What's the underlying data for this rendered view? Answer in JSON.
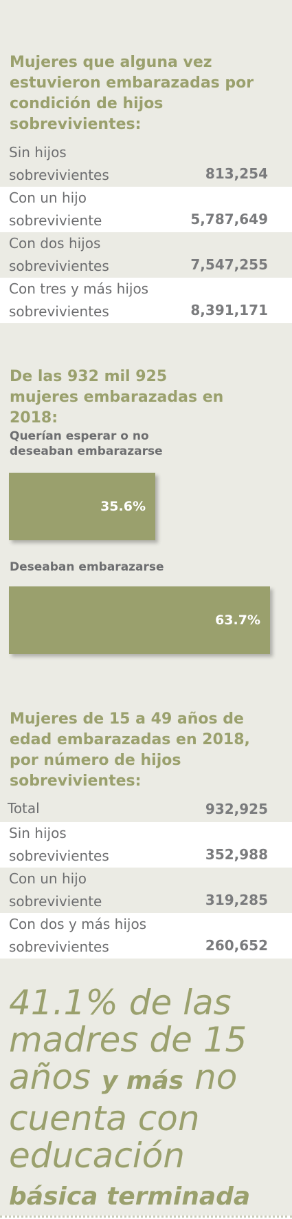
{
  "section1": {
    "title": "Mujeres que alguna vez estuvieron embarazadas por condición de hijos sobrevivientes:",
    "rows": [
      {
        "label": "Sin hijos sobrevivientes",
        "value": "813,254"
      },
      {
        "label": "Con un hijo sobreviviente",
        "value": "5,787,649"
      },
      {
        "label": "Con dos hijos sobrevivientes",
        "value": "7,547,255"
      },
      {
        "label": "Con tres y más hijos sobrevivientes",
        "value": "8,391,171"
      }
    ]
  },
  "section2": {
    "title": "De las 932 mil 925 mujeres embarazadas en 2018:",
    "bar1_label": "Querían esperar o no deseaban embarazarse",
    "bar1_value": "35.6%",
    "bar2_label": "Deseaban embarazarse",
    "bar2_value": "63.7%"
  },
  "chart_data": {
    "type": "bar",
    "categories": [
      "Querían esperar o no deseaban embarazarse",
      "Deseaban embarazarse"
    ],
    "values": [
      35.6,
      63.7
    ],
    "unit": "%",
    "orientation": "horizontal",
    "xlim": [
      0,
      72
    ],
    "colors": {
      "bar": "#9aa06d"
    }
  },
  "section3": {
    "title": "Mujeres de 15 a 49 años de edad embarazadas en 2018, por número  de hijos sobrevivientes:",
    "total_label": "Total",
    "total_value": "932,925",
    "rows": [
      {
        "label": "Sin hijos sobrevivientes",
        "value": "352,988"
      },
      {
        "label": "Con un hijo sobreviviente",
        "value": "319,285"
      },
      {
        "label": "Con dos y más hijos sobrevivientes",
        "value": "260,652"
      }
    ]
  },
  "quote": {
    "part1": "41.1% de las madres de 15 años",
    "part2": "y más",
    "part3": "no cuenta con educación",
    "part4": "básica terminada"
  },
  "colors": {
    "accent": "#9aa06d",
    "panel": "#ebebe4",
    "text": "#6d6e70"
  }
}
